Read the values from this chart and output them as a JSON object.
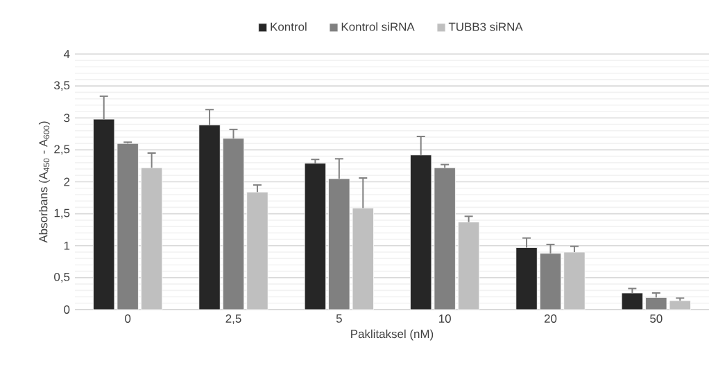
{
  "chart_data": {
    "type": "bar",
    "xlabel": "Paklitaksel (nM)",
    "ylabel": "Absorbans (A$_{450}$ - A$_{600}$)",
    "categories": [
      "0",
      "2,5",
      "5",
      "10",
      "20",
      "50"
    ],
    "series": [
      {
        "name": "Kontrol",
        "color": "#262626",
        "values": [
          2.98,
          2.89,
          2.29,
          2.42,
          0.97,
          0.26
        ],
        "errors": [
          [
            2.98,
            3.34
          ],
          [
            2.89,
            3.13
          ],
          [
            2.29,
            2.35
          ],
          [
            2.42,
            2.71
          ],
          [
            0.97,
            1.12
          ],
          [
            0.26,
            0.33
          ]
        ]
      },
      {
        "name": "Kontrol siRNA",
        "color": "#808080",
        "values": [
          2.6,
          2.68,
          2.05,
          2.22,
          0.88,
          0.19
        ],
        "errors": [
          [
            2.6,
            2.62
          ],
          [
            2.68,
            2.82
          ],
          [
            2.05,
            2.36
          ],
          [
            2.22,
            2.27
          ],
          [
            0.88,
            1.02
          ],
          [
            0.19,
            0.26
          ]
        ]
      },
      {
        "name": "TUBB3 siRNA",
        "color": "#bfbfbf",
        "values": [
          2.22,
          1.84,
          1.59,
          1.37,
          0.9,
          0.14
        ],
        "errors": [
          [
            2.22,
            2.45
          ],
          [
            1.84,
            1.95
          ],
          [
            1.59,
            2.06
          ],
          [
            1.37,
            1.46
          ],
          [
            0.9,
            0.99
          ],
          [
            0.14,
            0.18
          ]
        ]
      }
    ],
    "ylim": [
      0,
      4
    ],
    "yticks": [
      0,
      {
        "value": 0.5,
        "label": "0,5"
      },
      1,
      {
        "value": 1.5,
        "label": "1,5"
      },
      2,
      {
        "value": 2.5,
        "label": "2,5"
      },
      3,
      {
        "value": 3.5,
        "label": "3,5"
      },
      4
    ],
    "grid": "y",
    "legend": "top"
  }
}
